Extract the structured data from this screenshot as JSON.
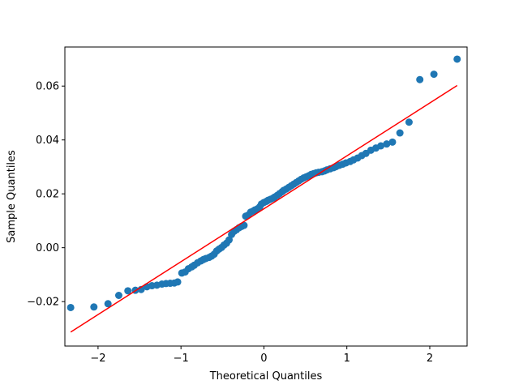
{
  "chart_data": {
    "type": "scatter",
    "title": "",
    "xlabel": "Theoretical Quantiles",
    "ylabel": "Sample Quantiles",
    "xlim": [
      -2.4,
      2.45
    ],
    "ylim": [
      -0.0365,
      0.0745
    ],
    "grid": false,
    "x_ticks": [
      -2,
      -1,
      0,
      1,
      2
    ],
    "x_tick_labels": [
      "−2",
      "−1",
      "0",
      "1",
      "2"
    ],
    "y_ticks": [
      -0.02,
      0.0,
      0.02,
      0.04,
      0.06
    ],
    "y_tick_labels": [
      "−0.02",
      "0.00",
      "0.02",
      "0.04",
      "0.06"
    ],
    "points_color": "#1f77b4",
    "line_color": "#ff0000",
    "reference_line": {
      "x": [
        -2.33,
        2.33
      ],
      "y": [
        -0.0313,
        0.0602
      ]
    },
    "points": [
      [
        -2.33,
        -0.0222
      ],
      [
        -2.05,
        -0.022
      ],
      [
        -1.88,
        -0.0208
      ],
      [
        -1.75,
        -0.0177
      ],
      [
        -1.64,
        -0.016
      ],
      [
        -1.55,
        -0.0158
      ],
      [
        -1.48,
        -0.0155
      ],
      [
        -1.41,
        -0.0145
      ],
      [
        -1.35,
        -0.0141
      ],
      [
        -1.29,
        -0.0139
      ],
      [
        -1.23,
        -0.0135
      ],
      [
        -1.18,
        -0.0133
      ],
      [
        -1.13,
        -0.0132
      ],
      [
        -1.08,
        -0.0131
      ],
      [
        -1.04,
        -0.0127
      ],
      [
        -0.99,
        -0.0094
      ],
      [
        -0.95,
        -0.009
      ],
      [
        -0.91,
        -0.0078
      ],
      [
        -0.87,
        -0.0071
      ],
      [
        -0.84,
        -0.0065
      ],
      [
        -0.8,
        -0.0056
      ],
      [
        -0.76,
        -0.0049
      ],
      [
        -0.73,
        -0.0044
      ],
      [
        -0.7,
        -0.004
      ],
      [
        -0.66,
        -0.0036
      ],
      [
        -0.63,
        -0.0031
      ],
      [
        -0.6,
        -0.0024
      ],
      [
        -0.57,
        -0.0012
      ],
      [
        -0.54,
        -0.0005
      ],
      [
        -0.51,
        0.0001
      ],
      [
        -0.48,
        0.001
      ],
      [
        -0.45,
        0.0017
      ],
      [
        -0.42,
        0.0029
      ],
      [
        -0.39,
        0.0049
      ],
      [
        -0.36,
        0.0061
      ],
      [
        -0.33,
        0.0067
      ],
      [
        -0.3,
        0.0074
      ],
      [
        -0.27,
        0.0079
      ],
      [
        -0.24,
        0.0083
      ],
      [
        -0.22,
        0.0117
      ],
      [
        -0.19,
        0.0121
      ],
      [
        -0.16,
        0.0132
      ],
      [
        -0.13,
        0.0136
      ],
      [
        -0.11,
        0.014
      ],
      [
        -0.08,
        0.0144
      ],
      [
        -0.05,
        0.0152
      ],
      [
        -0.03,
        0.0162
      ],
      [
        0.0,
        0.0168
      ],
      [
        0.03,
        0.0172
      ],
      [
        0.05,
        0.0176
      ],
      [
        0.08,
        0.018
      ],
      [
        0.11,
        0.0184
      ],
      [
        0.13,
        0.0188
      ],
      [
        0.16,
        0.0194
      ],
      [
        0.19,
        0.0201
      ],
      [
        0.22,
        0.0208
      ],
      [
        0.24,
        0.0213
      ],
      [
        0.27,
        0.0218
      ],
      [
        0.3,
        0.0224
      ],
      [
        0.33,
        0.023
      ],
      [
        0.36,
        0.0236
      ],
      [
        0.39,
        0.0242
      ],
      [
        0.42,
        0.0248
      ],
      [
        0.45,
        0.0254
      ],
      [
        0.48,
        0.0259
      ],
      [
        0.51,
        0.0263
      ],
      [
        0.54,
        0.0267
      ],
      [
        0.57,
        0.0272
      ],
      [
        0.6,
        0.0275
      ],
      [
        0.63,
        0.0278
      ],
      [
        0.66,
        0.028
      ],
      [
        0.7,
        0.0282
      ],
      [
        0.73,
        0.0285
      ],
      [
        0.76,
        0.0289
      ],
      [
        0.8,
        0.0293
      ],
      [
        0.84,
        0.0297
      ],
      [
        0.87,
        0.0301
      ],
      [
        0.91,
        0.0306
      ],
      [
        0.95,
        0.031
      ],
      [
        0.99,
        0.0315
      ],
      [
        1.04,
        0.032
      ],
      [
        1.08,
        0.0326
      ],
      [
        1.13,
        0.0333
      ],
      [
        1.18,
        0.0342
      ],
      [
        1.23,
        0.035
      ],
      [
        1.29,
        0.0362
      ],
      [
        1.35,
        0.037
      ],
      [
        1.41,
        0.0378
      ],
      [
        1.48,
        0.0385
      ],
      [
        1.55,
        0.0392
      ],
      [
        1.64,
        0.0426
      ],
      [
        1.75,
        0.0466
      ],
      [
        1.88,
        0.0624
      ],
      [
        2.05,
        0.0644
      ],
      [
        2.33,
        0.07
      ]
    ]
  }
}
